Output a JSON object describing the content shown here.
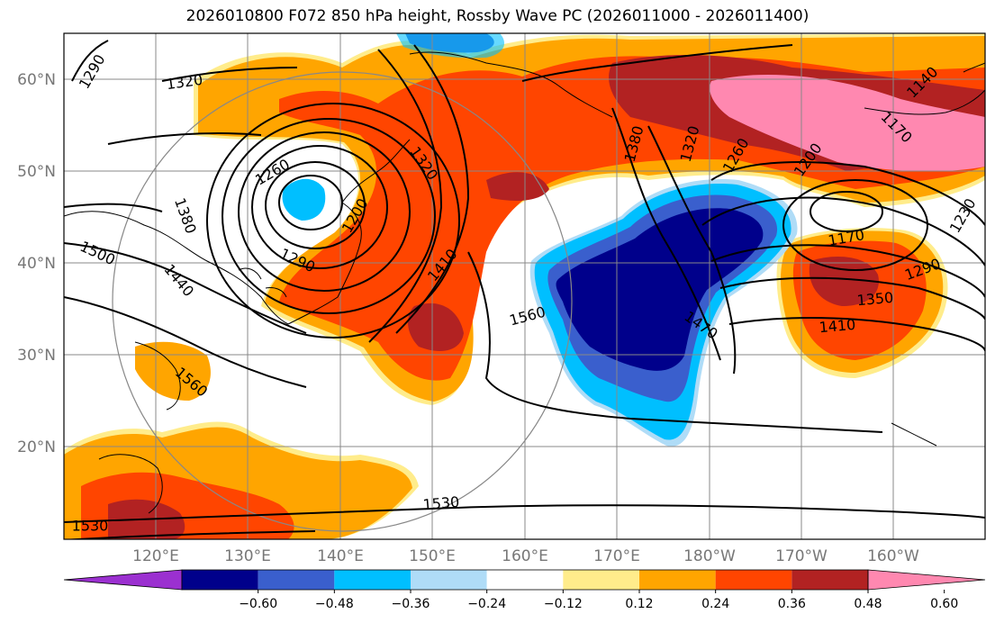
{
  "title": "2026010800 F072 850 hPa height, Rossby Wave PC (2026011000 - 2026011400)",
  "lat_labels": [
    "60°N",
    "50°N",
    "40°N",
    "30°N",
    "20°N"
  ],
  "lon_labels": [
    "120°E",
    "130°E",
    "140°E",
    "150°E",
    "160°E",
    "170°E",
    "180°W",
    "170°W",
    "160°W"
  ],
  "colorbar": {
    "ticks": [
      "−0.60",
      "−0.48",
      "−0.36",
      "−0.24",
      "−0.12",
      "0.12",
      "0.24",
      "0.36",
      "0.48",
      "0.60"
    ],
    "colors": [
      "#9b30d0",
      "#00008b",
      "#3a5fcd",
      "#00bfff",
      "#afdcf7",
      "#ffffff",
      "#ffec8b",
      "#ffa500",
      "#ff4500",
      "#b22222",
      "#ff88b0"
    ]
  },
  "contour_labels": [
    "1290",
    "1320",
    "1260",
    "1380",
    "1500",
    "1440",
    "1290",
    "1200",
    "1320",
    "1410",
    "1560",
    "1560",
    "1530",
    "1530",
    "1380",
    "1320",
    "1260",
    "1200",
    "1170",
    "1230",
    "1290",
    "1350",
    "1410",
    "1470",
    "1140",
    "1170"
  ],
  "fill_colors": {
    "orange": "#ffa500",
    "redorange": "#ff4500",
    "darkred": "#b22222",
    "pink": "#ff88b0",
    "yellow": "#ffec8b",
    "navy": "#00008b",
    "blue": "#3a5fcd",
    "cyan": "#00bfff",
    "lightblue": "#afdcf7"
  }
}
